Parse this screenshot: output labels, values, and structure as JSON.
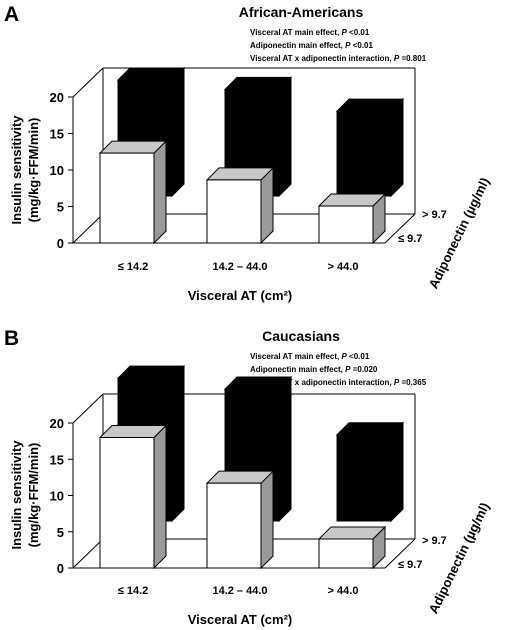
{
  "chart_data": [
    {
      "type": "bar",
      "panel": "A",
      "title": "African-Americans",
      "stats": {
        "line1": {
          "prefix": "Visceral AT main effect, ",
          "p": "P",
          "rest": " <0.01"
        },
        "line2": {
          "prefix": "Adiponectin main effect, ",
          "p": "P",
          "rest": " <0.01"
        },
        "line3": {
          "prefix": "Visceral AT x adiponectin interaction, ",
          "p": "P",
          "rest": " =0.801"
        }
      },
      "ylabel_line1": "Insulin sensitivity",
      "ylabel_line2": "(mg/kg·FFM/min)",
      "xlabel": "Visceral AT (cm²)",
      "zlabel": "Adiponectin (µg/ml)",
      "categories": [
        "≤ 14.2",
        "14.2 – 44.0",
        "> 44.0"
      ],
      "yticks": [
        "0",
        "5",
        "10",
        "15",
        "20"
      ],
      "ylim": [
        0,
        20
      ],
      "series": [
        {
          "name": "≤ 9.7",
          "color": "#ffffff",
          "values": [
            12.4,
            8.7,
            5.1
          ]
        },
        {
          "name": "> 9.7",
          "color": "#000000",
          "values": [
            16.0,
            14.7,
            11.7
          ]
        }
      ]
    },
    {
      "type": "bar",
      "panel": "B",
      "title": "Caucasians",
      "stats": {
        "line1": {
          "prefix": "Visceral AT main effect, ",
          "p": "P",
          "rest": " <0.01"
        },
        "line2": {
          "prefix": "Adiponectin main effect, ",
          "p": "P",
          "rest": " =0.020"
        },
        "line3": {
          "prefix": "Visceral AT x adiponectin interaction, ",
          "p": "P",
          "rest": " =0.365"
        }
      },
      "ylabel_line1": "Insulin sensitivity",
      "ylabel_line2": "(mg/kg·FFM/min)",
      "xlabel": "Visceral AT (cm²)",
      "zlabel": "Adiponectin (µg/ml)",
      "categories": [
        "≤ 14.2",
        "14.2 – 44.0",
        "> 44.0"
      ],
      "yticks": [
        "0",
        "5",
        "10",
        "15",
        "20"
      ],
      "ylim": [
        0,
        20
      ],
      "series": [
        {
          "name": "≤ 9.7",
          "color": "#ffffff",
          "values": [
            18.0,
            11.7,
            4.0
          ]
        },
        {
          "name": "> 9.7",
          "color": "#000000",
          "values": [
            19.7,
            18.2,
            11.9
          ]
        }
      ]
    }
  ]
}
